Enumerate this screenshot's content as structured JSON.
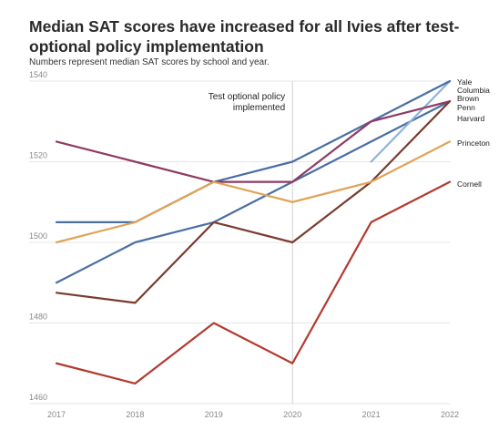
{
  "chart_data": {
    "type": "line",
    "title": "Median SAT scores have increased for all Ivies after test-optional policy implementation",
    "subtitle": "Numbers represent median SAT scores by school and year.",
    "x": [
      "2017",
      "2018",
      "2019",
      "2020",
      "2021",
      "2022"
    ],
    "ylim": [
      1460,
      1540
    ],
    "yticks": [
      1460,
      1480,
      1500,
      1520,
      1540
    ],
    "annotation": {
      "text_lines": [
        "Test optional policy",
        "implemented"
      ],
      "at_x": "2020"
    },
    "series": [
      {
        "name": "Yale",
        "color": "#4a6fa5",
        "values": [
          1490,
          1500,
          1505,
          1515,
          1525,
          1535
        ]
      },
      {
        "name": "Columbia",
        "color": "#8fb3d9",
        "values": [
          null,
          null,
          null,
          null,
          1520,
          1540
        ]
      },
      {
        "name": "Brown",
        "color": "#4a6fa5",
        "values": [
          1505,
          1505,
          1515,
          1520,
          1530,
          1540
        ]
      },
      {
        "name": "Penn",
        "color": "#8e3b63",
        "values": [
          1525,
          1520,
          1515,
          1515,
          1530,
          1535
        ]
      },
      {
        "name": "Harvard",
        "color": "#7a3b2e",
        "values": [
          1487.5,
          1485,
          1505,
          1500,
          1515,
          1535
        ]
      },
      {
        "name": "Princeton",
        "color": "#e0a45a",
        "values": [
          1500,
          1505,
          1515,
          1510,
          1515,
          1525
        ]
      },
      {
        "name": "Cornell",
        "color": "#b23a30",
        "values": [
          1470,
          1465,
          1480,
          1470,
          1505,
          1515
        ]
      }
    ],
    "end_labels": [
      "Yale",
      "Columbia",
      "Brown",
      "Penn",
      "Harvard",
      "Princeton",
      "Cornell"
    ],
    "grid": "horizontal",
    "legend": "direct labels at right"
  }
}
